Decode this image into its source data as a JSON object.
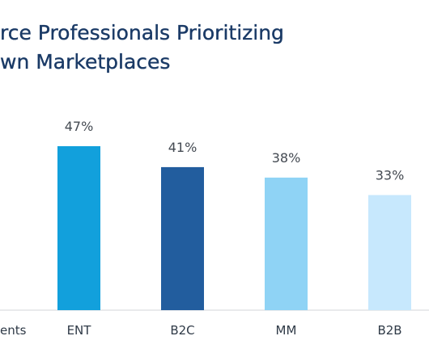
{
  "chart_data": {
    "type": "bar",
    "title_lines": [
      "rce Professionals Prioritizing",
      "wn Marketplaces"
    ],
    "cut_category_label": "ents",
    "categories": [
      "ENT",
      "B2C",
      "MM",
      "B2B"
    ],
    "values": [
      47,
      41,
      38,
      33
    ],
    "value_labels": [
      "47%",
      "41%",
      "38%",
      "33%"
    ],
    "colors": [
      "#12a0dc",
      "#225d9e",
      "#8fd3f5",
      "#c7e8fd"
    ],
    "ylim": [
      0,
      47
    ]
  }
}
